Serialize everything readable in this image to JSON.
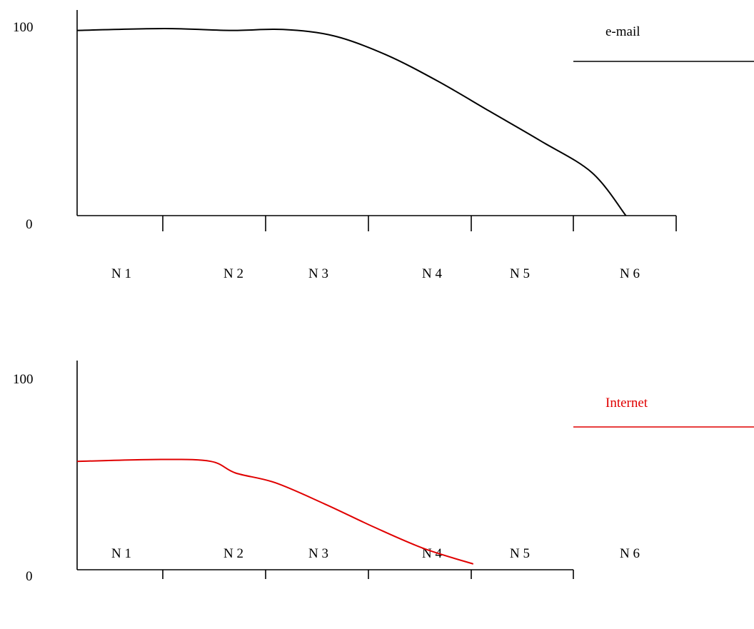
{
  "chart_data": [
    {
      "type": "line",
      "categories": [
        "N 1",
        "N 2",
        "N 3",
        "N 4",
        "N 5",
        "N 6"
      ],
      "y_ticks": [
        "100",
        "0"
      ],
      "ylim": [
        0,
        100
      ],
      "legend": "top-right",
      "grid": false,
      "series": [
        {
          "name": "e-mail",
          "color": "#000000",
          "points": [
            {
              "x": 0.0,
              "y": 99
            },
            {
              "x": 0.85,
              "y": 100
            },
            {
              "x": 1.5,
              "y": 99
            },
            {
              "x": 2.0,
              "y": 99.5
            },
            {
              "x": 2.5,
              "y": 96
            },
            {
              "x": 3.0,
              "y": 86
            },
            {
              "x": 3.5,
              "y": 72
            },
            {
              "x": 4.0,
              "y": 56
            },
            {
              "x": 4.5,
              "y": 40
            },
            {
              "x": 5.0,
              "y": 23
            },
            {
              "x": 5.33,
              "y": 0
            }
          ]
        }
      ]
    },
    {
      "type": "line",
      "categories": [
        "N 1",
        "N 2",
        "N 3",
        "N 4",
        "N 5",
        "N 6"
      ],
      "y_ticks": [
        "100",
        "0"
      ],
      "ylim": [
        0,
        100
      ],
      "legend": "top-right",
      "grid": false,
      "series": [
        {
          "name": "Internet",
          "color": "#e00000",
          "points": [
            {
              "x": 0.0,
              "y": 56
            },
            {
              "x": 0.85,
              "y": 57
            },
            {
              "x": 1.35,
              "y": 56
            },
            {
              "x": 1.6,
              "y": 50
            },
            {
              "x": 2.0,
              "y": 45
            },
            {
              "x": 2.5,
              "y": 34
            },
            {
              "x": 3.0,
              "y": 22
            },
            {
              "x": 3.5,
              "y": 11
            },
            {
              "x": 4.0,
              "y": 3
            }
          ]
        }
      ]
    }
  ]
}
